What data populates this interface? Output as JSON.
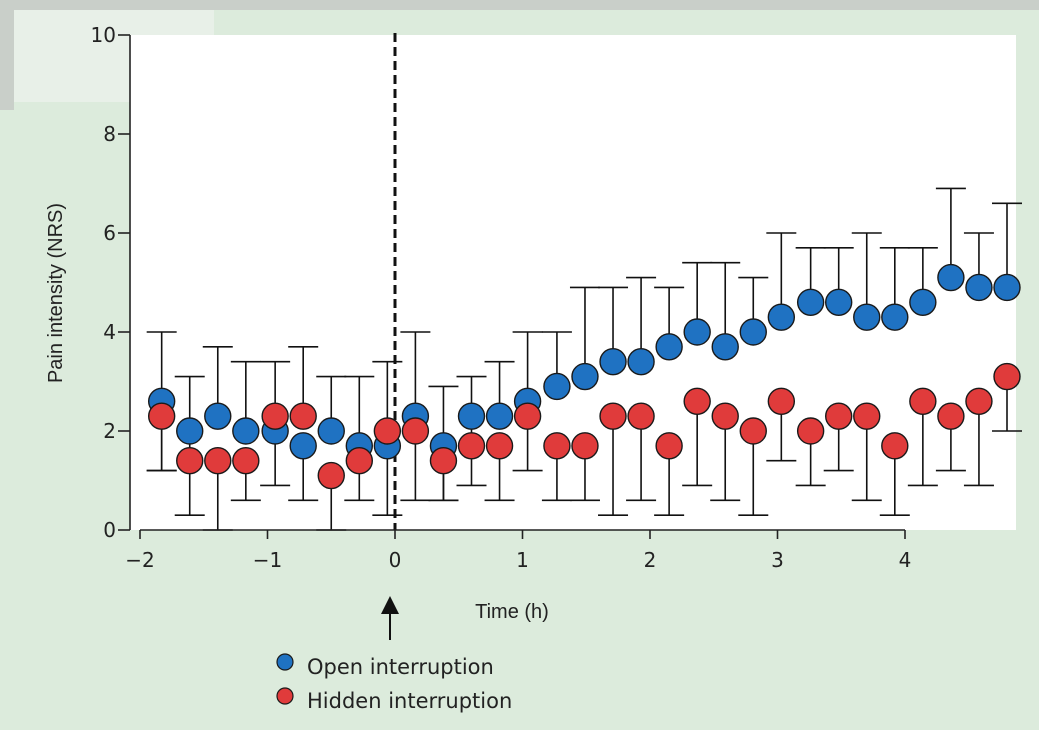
{
  "chart_data": {
    "type": "scatter",
    "xlabel": "Time (h)",
    "ylabel": "Pain intensity (NRS)",
    "xlim": [
      -2,
      4.95
    ],
    "ylim": [
      0,
      10
    ],
    "x_ticks": [
      "−2",
      "−1",
      "0",
      "1",
      "2",
      "3",
      "4"
    ],
    "y_ticks": [
      "0",
      "2",
      "4",
      "6",
      "8",
      "10"
    ],
    "grid": false,
    "legend_position": "bottom-center",
    "vertical_marker_x": 0,
    "series": [
      {
        "name": "Open interruption",
        "color": "#1f72c2",
        "points": [
          {
            "x": -1.83,
            "y": 2.6,
            "lo": 1.2,
            "hi": 4.0
          },
          {
            "x": -1.61,
            "y": 2.0
          },
          {
            "x": -1.39,
            "y": 2.3,
            "hi": 3.7
          },
          {
            "x": -1.17,
            "y": 2.0,
            "hi": 3.4
          },
          {
            "x": -0.94,
            "y": 2.0,
            "lo": 0.9
          },
          {
            "x": -0.72,
            "y": 1.7,
            "lo": 0.6
          },
          {
            "x": -0.5,
            "y": 2.0,
            "hi": 3.1
          },
          {
            "x": -0.28,
            "y": 1.7
          },
          {
            "x": -0.06,
            "y": 1.7,
            "lo": 0.3
          },
          {
            "x": 0.16,
            "y": 2.3,
            "hi": 4.0
          },
          {
            "x": 0.38,
            "y": 1.7,
            "lo": 0.6,
            "hi": 2.9
          },
          {
            "x": 0.6,
            "y": 2.3,
            "lo": 0.9,
            "hi": 3.1
          },
          {
            "x": 0.82,
            "y": 2.3,
            "hi": 3.4
          },
          {
            "x": 1.04,
            "y": 2.6,
            "lo": 1.2,
            "hi": 4.0
          },
          {
            "x": 1.27,
            "y": 2.9,
            "hi": 4.0
          },
          {
            "x": 1.49,
            "y": 3.1,
            "hi": 4.9
          },
          {
            "x": 1.71,
            "y": 3.4,
            "hi": 4.9
          },
          {
            "x": 1.93,
            "y": 3.4,
            "hi": 5.1
          },
          {
            "x": 2.15,
            "y": 3.7,
            "hi": 4.9
          },
          {
            "x": 2.37,
            "y": 4.0,
            "hi": 5.4
          },
          {
            "x": 2.59,
            "y": 3.7,
            "hi": 5.4
          },
          {
            "x": 2.81,
            "y": 4.0,
            "hi": 5.1
          },
          {
            "x": 3.03,
            "y": 4.3,
            "hi": 6.0
          },
          {
            "x": 3.26,
            "y": 4.6,
            "hi": 5.7
          },
          {
            "x": 3.48,
            "y": 4.6,
            "hi": 5.7
          },
          {
            "x": 3.7,
            "y": 4.3,
            "hi": 6.0
          },
          {
            "x": 3.92,
            "y": 4.3,
            "hi": 5.7
          },
          {
            "x": 4.14,
            "y": 4.6,
            "hi": 5.7
          },
          {
            "x": 4.36,
            "y": 5.1,
            "hi": 6.9
          },
          {
            "x": 4.58,
            "y": 4.9,
            "hi": 6.0
          },
          {
            "x": 4.8,
            "y": 4.9,
            "hi": 6.6
          }
        ]
      },
      {
        "name": "Hidden interruption",
        "color": "#e03b3b",
        "points": [
          {
            "x": -1.83,
            "y": 2.3,
            "lo": 1.2
          },
          {
            "x": -1.61,
            "y": 1.4,
            "lo": 0.3,
            "hi": 3.1
          },
          {
            "x": -1.39,
            "y": 1.4,
            "lo": 0.0
          },
          {
            "x": -1.17,
            "y": 1.4,
            "lo": 0.6
          },
          {
            "x": -0.94,
            "y": 2.3,
            "hi": 3.4
          },
          {
            "x": -0.72,
            "y": 2.3,
            "hi": 3.7
          },
          {
            "x": -0.5,
            "y": 1.1,
            "lo": 0.0
          },
          {
            "x": -0.28,
            "y": 1.4,
            "lo": 0.6,
            "hi": 3.1
          },
          {
            "x": -0.06,
            "y": 2.0,
            "hi": 3.4
          },
          {
            "x": 0.16,
            "y": 2.0,
            "lo": 0.6
          },
          {
            "x": 0.38,
            "y": 1.4,
            "lo": 0.6
          },
          {
            "x": 0.6,
            "y": 1.7
          },
          {
            "x": 0.82,
            "y": 1.7,
            "lo": 0.6
          },
          {
            "x": 1.04,
            "y": 2.3
          },
          {
            "x": 1.27,
            "y": 1.7,
            "lo": 0.6
          },
          {
            "x": 1.49,
            "y": 1.7,
            "lo": 0.6
          },
          {
            "x": 1.71,
            "y": 2.3,
            "lo": 0.3
          },
          {
            "x": 1.93,
            "y": 2.3,
            "lo": 0.6
          },
          {
            "x": 2.15,
            "y": 1.7,
            "lo": 0.3
          },
          {
            "x": 2.37,
            "y": 2.6,
            "lo": 0.9
          },
          {
            "x": 2.59,
            "y": 2.3,
            "lo": 0.6
          },
          {
            "x": 2.81,
            "y": 2.0,
            "lo": 0.3
          },
          {
            "x": 3.03,
            "y": 2.6,
            "lo": 1.4
          },
          {
            "x": 3.26,
            "y": 2.0,
            "lo": 0.9
          },
          {
            "x": 3.48,
            "y": 2.3,
            "lo": 1.2
          },
          {
            "x": 3.7,
            "y": 2.3,
            "lo": 0.6
          },
          {
            "x": 3.92,
            "y": 1.7,
            "lo": 0.3
          },
          {
            "x": 4.14,
            "y": 2.6,
            "lo": 0.9
          },
          {
            "x": 4.36,
            "y": 2.3,
            "lo": 1.2
          },
          {
            "x": 4.58,
            "y": 2.6,
            "lo": 0.9
          },
          {
            "x": 4.8,
            "y": 3.1,
            "lo": 2.0
          }
        ]
      }
    ]
  }
}
